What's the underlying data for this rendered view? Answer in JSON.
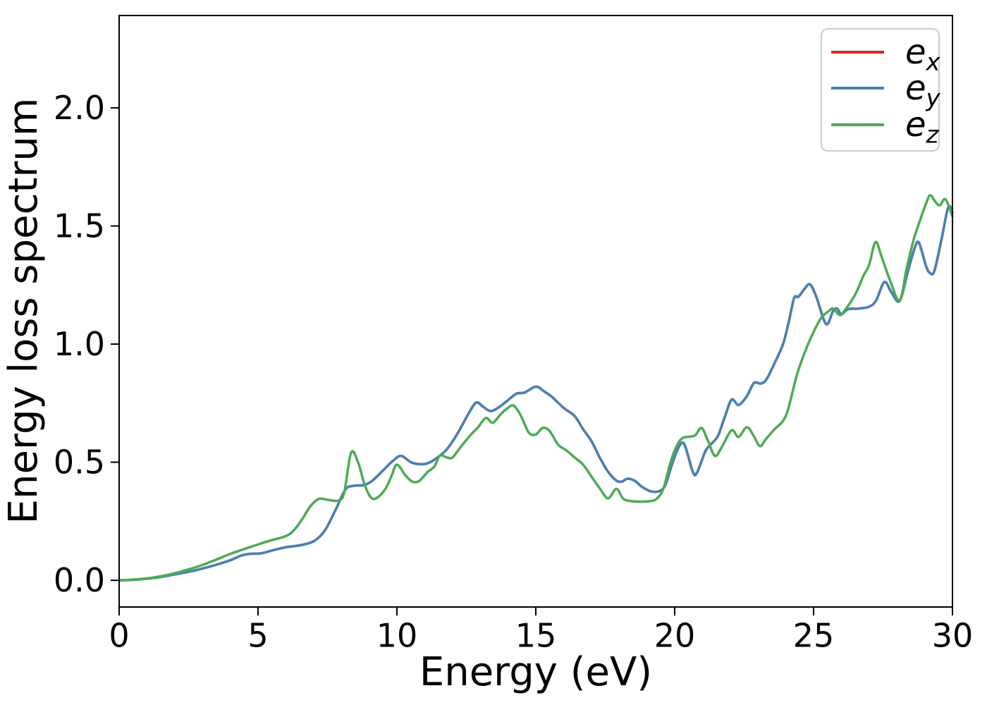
{
  "chart_data": {
    "type": "line",
    "title": "",
    "xlabel": "Energy (eV)",
    "ylabel": "Energy loss spectrum",
    "xlim": [
      0,
      30
    ],
    "ylim": [
      -0.113,
      2.391
    ],
    "grid": false,
    "legend": {
      "position": "upper right",
      "border_color": "#cdcdcd"
    },
    "x_ticks": {
      "values": [
        0,
        5,
        10,
        15,
        20,
        25,
        30
      ],
      "labels": [
        "0",
        "5",
        "10",
        "15",
        "20",
        "25",
        "30"
      ]
    },
    "y_ticks": {
      "values": [
        0,
        0.5,
        1.0,
        1.5,
        2.0
      ],
      "labels": [
        "0.0",
        "0.5",
        "1.0",
        "1.5",
        "2.0"
      ]
    },
    "series": [
      {
        "name": "ex",
        "label_base": "e",
        "label_sub": "x",
        "color": "#d62728",
        "note": "curve coincides with ey and is hidden beneath it",
        "points": [
          [
            0,
            0
          ],
          [
            0.5,
            0.002
          ],
          [
            1,
            0.007
          ],
          [
            1.5,
            0.014
          ],
          [
            2,
            0.025
          ],
          [
            2.5,
            0.036
          ],
          [
            3,
            0.05
          ],
          [
            3.5,
            0.066
          ],
          [
            4,
            0.085
          ],
          [
            4.4,
            0.105
          ],
          [
            4.7,
            0.112
          ],
          [
            5.1,
            0.114
          ],
          [
            5.5,
            0.126
          ],
          [
            6,
            0.14
          ],
          [
            6.5,
            0.148
          ],
          [
            7,
            0.165
          ],
          [
            7.4,
            0.21
          ],
          [
            7.8,
            0.3
          ],
          [
            8.15,
            0.385
          ],
          [
            8.45,
            0.4
          ],
          [
            8.8,
            0.403
          ],
          [
            9.1,
            0.42
          ],
          [
            9.5,
            0.465
          ],
          [
            9.85,
            0.505
          ],
          [
            10.15,
            0.527
          ],
          [
            10.5,
            0.5
          ],
          [
            10.8,
            0.492
          ],
          [
            11.1,
            0.495
          ],
          [
            11.4,
            0.515
          ],
          [
            11.8,
            0.555
          ],
          [
            12.2,
            0.625
          ],
          [
            12.55,
            0.7
          ],
          [
            12.85,
            0.752
          ],
          [
            13.1,
            0.735
          ],
          [
            13.35,
            0.717
          ],
          [
            13.6,
            0.727
          ],
          [
            13.95,
            0.758
          ],
          [
            14.3,
            0.79
          ],
          [
            14.6,
            0.795
          ],
          [
            15,
            0.82
          ],
          [
            15.3,
            0.8
          ],
          [
            15.6,
            0.775
          ],
          [
            16,
            0.73
          ],
          [
            16.4,
            0.695
          ],
          [
            16.7,
            0.64
          ],
          [
            17,
            0.59
          ],
          [
            17.3,
            0.52
          ],
          [
            17.6,
            0.46
          ],
          [
            17.9,
            0.422
          ],
          [
            18.1,
            0.418
          ],
          [
            18.3,
            0.43
          ],
          [
            18.55,
            0.422
          ],
          [
            18.8,
            0.398
          ],
          [
            19.1,
            0.378
          ],
          [
            19.4,
            0.376
          ],
          [
            19.65,
            0.4
          ],
          [
            19.9,
            0.49
          ],
          [
            20.15,
            0.565
          ],
          [
            20.35,
            0.575
          ],
          [
            20.65,
            0.46
          ],
          [
            20.8,
            0.455
          ],
          [
            21.1,
            0.545
          ],
          [
            21.3,
            0.575
          ],
          [
            21.55,
            0.61
          ],
          [
            21.8,
            0.69
          ],
          [
            22.05,
            0.765
          ],
          [
            22.3,
            0.742
          ],
          [
            22.6,
            0.78
          ],
          [
            22.85,
            0.835
          ],
          [
            23.1,
            0.833
          ],
          [
            23.3,
            0.85
          ],
          [
            23.6,
            0.92
          ],
          [
            23.9,
            1
          ],
          [
            24.1,
            1.09
          ],
          [
            24.3,
            1.195
          ],
          [
            24.45,
            1.2
          ],
          [
            24.65,
            1.23
          ],
          [
            24.87,
            1.253
          ],
          [
            25.1,
            1.2
          ],
          [
            25.45,
            1.085
          ],
          [
            25.7,
            1.14
          ],
          [
            25.85,
            1.15
          ],
          [
            26,
            1.127
          ],
          [
            26.25,
            1.148
          ],
          [
            26.6,
            1.15
          ],
          [
            27,
            1.158
          ],
          [
            27.25,
            1.185
          ],
          [
            27.55,
            1.263
          ],
          [
            27.8,
            1.22
          ],
          [
            28.1,
            1.183
          ],
          [
            28.4,
            1.31
          ],
          [
            28.65,
            1.41
          ],
          [
            28.8,
            1.428
          ],
          [
            29.05,
            1.33
          ],
          [
            29.2,
            1.3
          ],
          [
            29.35,
            1.31
          ],
          [
            29.6,
            1.44
          ],
          [
            29.85,
            1.58
          ],
          [
            30,
            1.556
          ]
        ]
      },
      {
        "name": "ey",
        "label_base": "e",
        "label_sub": "y",
        "color": "#4682b4",
        "points": [
          [
            0,
            0
          ],
          [
            0.5,
            0.002
          ],
          [
            1,
            0.007
          ],
          [
            1.5,
            0.014
          ],
          [
            2,
            0.025
          ],
          [
            2.5,
            0.036
          ],
          [
            3,
            0.05
          ],
          [
            3.5,
            0.066
          ],
          [
            4,
            0.085
          ],
          [
            4.4,
            0.105
          ],
          [
            4.7,
            0.112
          ],
          [
            5.1,
            0.114
          ],
          [
            5.5,
            0.126
          ],
          [
            6,
            0.14
          ],
          [
            6.5,
            0.148
          ],
          [
            7,
            0.165
          ],
          [
            7.4,
            0.21
          ],
          [
            7.8,
            0.3
          ],
          [
            8.15,
            0.385
          ],
          [
            8.45,
            0.4
          ],
          [
            8.8,
            0.403
          ],
          [
            9.1,
            0.42
          ],
          [
            9.5,
            0.465
          ],
          [
            9.85,
            0.505
          ],
          [
            10.15,
            0.527
          ],
          [
            10.5,
            0.5
          ],
          [
            10.8,
            0.492
          ],
          [
            11.1,
            0.495
          ],
          [
            11.4,
            0.515
          ],
          [
            11.8,
            0.555
          ],
          [
            12.2,
            0.625
          ],
          [
            12.55,
            0.7
          ],
          [
            12.85,
            0.752
          ],
          [
            13.1,
            0.735
          ],
          [
            13.35,
            0.717
          ],
          [
            13.6,
            0.727
          ],
          [
            13.95,
            0.758
          ],
          [
            14.3,
            0.79
          ],
          [
            14.6,
            0.795
          ],
          [
            15,
            0.82
          ],
          [
            15.3,
            0.8
          ],
          [
            15.6,
            0.775
          ],
          [
            16,
            0.73
          ],
          [
            16.4,
            0.695
          ],
          [
            16.7,
            0.64
          ],
          [
            17,
            0.59
          ],
          [
            17.3,
            0.52
          ],
          [
            17.6,
            0.46
          ],
          [
            17.9,
            0.422
          ],
          [
            18.1,
            0.418
          ],
          [
            18.3,
            0.43
          ],
          [
            18.55,
            0.422
          ],
          [
            18.8,
            0.398
          ],
          [
            19.1,
            0.378
          ],
          [
            19.4,
            0.376
          ],
          [
            19.65,
            0.4
          ],
          [
            19.9,
            0.49
          ],
          [
            20.15,
            0.565
          ],
          [
            20.35,
            0.575
          ],
          [
            20.65,
            0.46
          ],
          [
            20.8,
            0.455
          ],
          [
            21.1,
            0.545
          ],
          [
            21.3,
            0.575
          ],
          [
            21.55,
            0.61
          ],
          [
            21.8,
            0.69
          ],
          [
            22.05,
            0.765
          ],
          [
            22.3,
            0.742
          ],
          [
            22.6,
            0.78
          ],
          [
            22.85,
            0.835
          ],
          [
            23.1,
            0.833
          ],
          [
            23.3,
            0.85
          ],
          [
            23.6,
            0.92
          ],
          [
            23.9,
            1
          ],
          [
            24.1,
            1.09
          ],
          [
            24.3,
            1.195
          ],
          [
            24.45,
            1.2
          ],
          [
            24.65,
            1.23
          ],
          [
            24.87,
            1.253
          ],
          [
            25.1,
            1.2
          ],
          [
            25.45,
            1.085
          ],
          [
            25.7,
            1.14
          ],
          [
            25.85,
            1.15
          ],
          [
            26,
            1.127
          ],
          [
            26.25,
            1.148
          ],
          [
            26.6,
            1.15
          ],
          [
            27,
            1.158
          ],
          [
            27.25,
            1.185
          ],
          [
            27.55,
            1.263
          ],
          [
            27.8,
            1.22
          ],
          [
            28.1,
            1.183
          ],
          [
            28.4,
            1.31
          ],
          [
            28.65,
            1.41
          ],
          [
            28.8,
            1.428
          ],
          [
            29.05,
            1.33
          ],
          [
            29.2,
            1.3
          ],
          [
            29.35,
            1.31
          ],
          [
            29.6,
            1.44
          ],
          [
            29.85,
            1.58
          ],
          [
            30,
            1.556
          ]
        ]
      },
      {
        "name": "ez",
        "label_base": "e",
        "label_sub": "z",
        "color": "#4cab55",
        "points": [
          [
            0,
            0
          ],
          [
            0.5,
            0.003
          ],
          [
            1,
            0.008
          ],
          [
            1.5,
            0.017
          ],
          [
            2,
            0.03
          ],
          [
            2.5,
            0.046
          ],
          [
            3,
            0.065
          ],
          [
            3.5,
            0.088
          ],
          [
            4,
            0.112
          ],
          [
            4.4,
            0.128
          ],
          [
            4.9,
            0.148
          ],
          [
            5.4,
            0.167
          ],
          [
            5.9,
            0.183
          ],
          [
            6.15,
            0.197
          ],
          [
            6.4,
            0.227
          ],
          [
            6.65,
            0.27
          ],
          [
            6.9,
            0.316
          ],
          [
            7.2,
            0.345
          ],
          [
            7.55,
            0.34
          ],
          [
            7.9,
            0.338
          ],
          [
            8.1,
            0.37
          ],
          [
            8.35,
            0.54
          ],
          [
            8.6,
            0.5
          ],
          [
            8.85,
            0.4
          ],
          [
            9.1,
            0.347
          ],
          [
            9.35,
            0.355
          ],
          [
            9.6,
            0.39
          ],
          [
            9.8,
            0.44
          ],
          [
            10,
            0.49
          ],
          [
            10.3,
            0.445
          ],
          [
            10.55,
            0.418
          ],
          [
            10.8,
            0.42
          ],
          [
            11.1,
            0.458
          ],
          [
            11.35,
            0.482
          ],
          [
            11.55,
            0.528
          ],
          [
            11.8,
            0.52
          ],
          [
            12,
            0.52
          ],
          [
            12.3,
            0.565
          ],
          [
            12.65,
            0.615
          ],
          [
            12.9,
            0.645
          ],
          [
            13.2,
            0.687
          ],
          [
            13.45,
            0.667
          ],
          [
            13.75,
            0.705
          ],
          [
            14,
            0.73
          ],
          [
            14.2,
            0.74
          ],
          [
            14.45,
            0.7
          ],
          [
            14.75,
            0.625
          ],
          [
            15,
            0.618
          ],
          [
            15.25,
            0.645
          ],
          [
            15.5,
            0.632
          ],
          [
            15.8,
            0.575
          ],
          [
            16.1,
            0.55
          ],
          [
            16.4,
            0.52
          ],
          [
            16.7,
            0.49
          ],
          [
            17,
            0.44
          ],
          [
            17.3,
            0.39
          ],
          [
            17.6,
            0.347
          ],
          [
            17.9,
            0.387
          ],
          [
            18.15,
            0.345
          ],
          [
            18.45,
            0.335
          ],
          [
            18.8,
            0.333
          ],
          [
            19.1,
            0.335
          ],
          [
            19.35,
            0.345
          ],
          [
            19.6,
            0.39
          ],
          [
            19.85,
            0.5
          ],
          [
            20.1,
            0.575
          ],
          [
            20.3,
            0.603
          ],
          [
            20.55,
            0.608
          ],
          [
            20.75,
            0.615
          ],
          [
            20.97,
            0.645
          ],
          [
            21.2,
            0.59
          ],
          [
            21.45,
            0.527
          ],
          [
            21.7,
            0.565
          ],
          [
            22.05,
            0.635
          ],
          [
            22.3,
            0.607
          ],
          [
            22.6,
            0.648
          ],
          [
            22.85,
            0.61
          ],
          [
            23.07,
            0.568
          ],
          [
            23.3,
            0.6
          ],
          [
            23.6,
            0.64
          ],
          [
            23.9,
            0.675
          ],
          [
            24.1,
            0.73
          ],
          [
            24.4,
            0.87
          ],
          [
            24.75,
            0.985
          ],
          [
            25.1,
            1.075
          ],
          [
            25.3,
            1.115
          ],
          [
            25.55,
            1.14
          ],
          [
            25.7,
            1.15
          ],
          [
            25.95,
            1.123
          ],
          [
            26.15,
            1.147
          ],
          [
            26.5,
            1.21
          ],
          [
            26.8,
            1.29
          ],
          [
            27,
            1.335
          ],
          [
            27.23,
            1.432
          ],
          [
            27.45,
            1.37
          ],
          [
            27.75,
            1.27
          ],
          [
            28.1,
            1.185
          ],
          [
            28.35,
            1.32
          ],
          [
            28.6,
            1.44
          ],
          [
            28.85,
            1.53
          ],
          [
            29.05,
            1.595
          ],
          [
            29.2,
            1.63
          ],
          [
            29.4,
            1.6
          ],
          [
            29.55,
            1.588
          ],
          [
            29.75,
            1.613
          ],
          [
            30,
            1.54
          ]
        ]
      }
    ]
  }
}
